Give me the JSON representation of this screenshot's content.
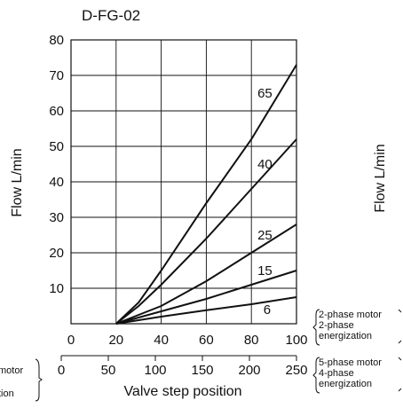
{
  "chart_data": {
    "type": "line",
    "title": "D-FG-02",
    "ylabel": "Flow  L/min",
    "xlabel": "Valve step position",
    "ylim": [
      0,
      80
    ],
    "y_ticks": [
      "10",
      "20",
      "30",
      "40",
      "50",
      "60",
      "70",
      "80"
    ],
    "x_axis_2phase": {
      "range": [
        0,
        100
      ],
      "ticks": [
        "0",
        "20",
        "40",
        "60",
        "80",
        "100"
      ],
      "note": [
        "2-phase motor",
        "2-phase",
        "energization"
      ]
    },
    "x_axis_5phase": {
      "range": [
        0,
        250
      ],
      "ticks": [
        "0",
        "50",
        "100",
        "150",
        "200",
        "250"
      ],
      "note": [
        "5-phase motor",
        "4-phase",
        "energization"
      ]
    },
    "left_cut_note": [
      "motor",
      "tion"
    ],
    "right_cut_ylabel": "Flow  L/min",
    "grid": true,
    "series": [
      {
        "name": "65",
        "x": [
          20,
          30,
          40,
          60,
          80,
          100
        ],
        "y": [
          0,
          6,
          15,
          34,
          52,
          73
        ]
      },
      {
        "name": "40",
        "x": [
          20,
          30,
          40,
          60,
          80,
          100
        ],
        "y": [
          0,
          5,
          11,
          24,
          38,
          52
        ]
      },
      {
        "name": "25",
        "x": [
          20,
          40,
          60,
          80,
          100
        ],
        "y": [
          0,
          5,
          12,
          20,
          28
        ]
      },
      {
        "name": "15",
        "x": [
          20,
          40,
          60,
          80,
          100
        ],
        "y": [
          0,
          3.5,
          7,
          11,
          15
        ]
      },
      {
        "name": "6",
        "x": [
          20,
          40,
          60,
          80,
          100
        ],
        "y": [
          0,
          2,
          3.8,
          5.5,
          7.5
        ]
      }
    ],
    "series_label_positions": [
      {
        "name": "65",
        "x": 86,
        "y": 65
      },
      {
        "name": "40",
        "x": 86,
        "y": 45
      },
      {
        "name": "25",
        "x": 86,
        "y": 25
      },
      {
        "name": "15",
        "x": 86,
        "y": 15
      },
      {
        "name": "6",
        "x": 87,
        "y": 4
      }
    ]
  }
}
